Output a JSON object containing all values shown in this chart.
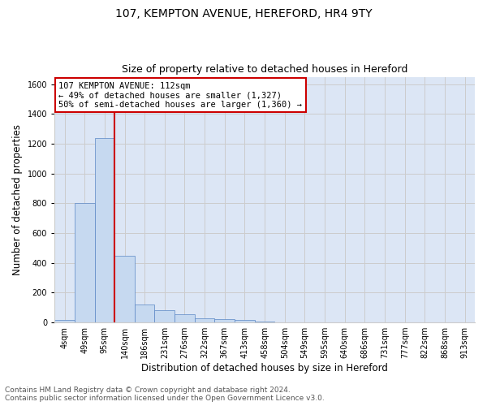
{
  "title": "107, KEMPTON AVENUE, HEREFORD, HR4 9TY",
  "subtitle": "Size of property relative to detached houses in Hereford",
  "xlabel": "Distribution of detached houses by size in Hereford",
  "ylabel": "Number of detached properties",
  "footnote": "Contains HM Land Registry data © Crown copyright and database right 2024.\nContains public sector information licensed under the Open Government Licence v3.0.",
  "bin_labels": [
    "4sqm",
    "49sqm",
    "95sqm",
    "140sqm",
    "186sqm",
    "231sqm",
    "276sqm",
    "322sqm",
    "367sqm",
    "413sqm",
    "458sqm",
    "504sqm",
    "549sqm",
    "595sqm",
    "640sqm",
    "686sqm",
    "731sqm",
    "777sqm",
    "822sqm",
    "868sqm",
    "913sqm"
  ],
  "bar_values": [
    15,
    800,
    1240,
    450,
    120,
    80,
    55,
    30,
    20,
    15,
    8,
    0,
    0,
    0,
    0,
    0,
    0,
    0,
    0,
    0,
    0
  ],
  "bar_color": "#c6d9f0",
  "bar_edge_color": "#5a86c5",
  "annotation_text": "107 KEMPTON AVENUE: 112sqm\n← 49% of detached houses are smaller (1,327)\n50% of semi-detached houses are larger (1,360) →",
  "annotation_box_color": "#ffffff",
  "annotation_box_edge": "#cc0000",
  "ylim": [
    0,
    1650
  ],
  "yticks": [
    0,
    200,
    400,
    600,
    800,
    1000,
    1200,
    1400,
    1600
  ],
  "grid_color": "#cccccc",
  "bg_color": "#dce6f5",
  "title_fontsize": 10,
  "subtitle_fontsize": 9,
  "axis_fontsize": 8.5,
  "tick_fontsize": 7,
  "footnote_fontsize": 6.5
}
